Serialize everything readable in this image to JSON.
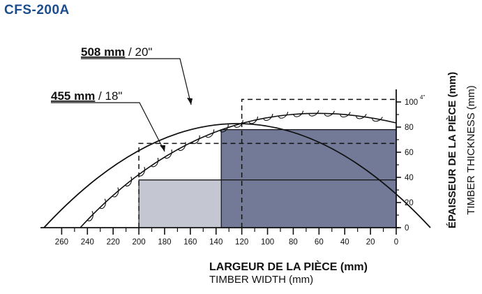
{
  "header": {
    "model": "CFS-200A"
  },
  "blade_labels": {
    "large": {
      "metric": "508 mm",
      "imperial": " / 20\""
    },
    "small": {
      "metric": "455 mm",
      "imperial": " / 18\""
    }
  },
  "x_axis": {
    "title_fr": "LARGEUR DE LA PIÈCE (mm)",
    "title_en": "TIMBER WIDTH (mm)",
    "ticks": [
      "260",
      "240",
      "220",
      "200",
      "180",
      "160",
      "140",
      "120",
      "100",
      "80",
      "60",
      "40",
      "20",
      "0"
    ]
  },
  "y_axis": {
    "title_fr": "ÉPAISSEUR DE LA PIÈCE (mm)",
    "title_en": "TIMBER THICKNESS (mm)",
    "ticks": [
      "0",
      "20",
      "40",
      "60",
      "80",
      "100"
    ],
    "top_tick_unit": "4\""
  },
  "colors": {
    "dark_region": "#727a98",
    "light_region": "#c4c6d2",
    "line": "#111111",
    "title": "#1b4d8e"
  },
  "capacity_zones": [
    {
      "name": "dark",
      "width_mm": 136,
      "thickness_mm": 78
    },
    {
      "name": "light",
      "width_mm": 200,
      "thickness_mm": 38
    }
  ],
  "guide_points": [
    {
      "width_mm": 120,
      "thickness_mm": 102
    },
    {
      "width_mm": 200,
      "thickness_mm": 67
    }
  ]
}
